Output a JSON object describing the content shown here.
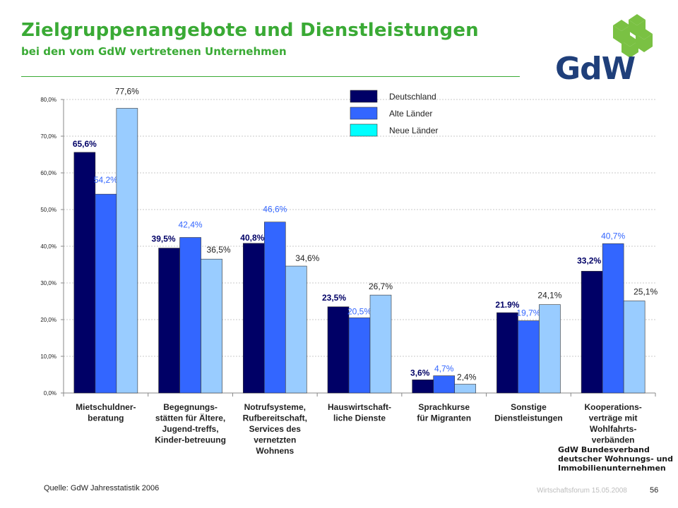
{
  "header": {
    "title": "Zielgruppenangebote und Dienstleistungen",
    "subtitle": "bei den vom GdW vertretenen Unternehmen"
  },
  "logo": {
    "text": "GdW",
    "icon": "gdw-house-icon",
    "colors": {
      "green": "#7ac143",
      "blue": "#1f3f7a"
    }
  },
  "chart_data": {
    "type": "bar",
    "ylim": [
      0,
      80
    ],
    "y_ticks": [
      "0,0%",
      "10,0%",
      "20,0%",
      "30,0%",
      "40,0%",
      "50,0%",
      "60,0%",
      "70,0%",
      "80,0%"
    ],
    "grid": true,
    "legend_position": "top",
    "categories": [
      [
        "Mietschuldner-",
        "beratung"
      ],
      [
        "Begegnungs-",
        "stätten für Ältere,",
        "Jugend-treffs,",
        "Kinder-betreuung"
      ],
      [
        "Notrufsysteme,",
        "Rufbereitschaft,",
        "Services des",
        "vernetzten",
        "Wohnens"
      ],
      [
        "Hauswirtschaft-",
        "liche Dienste"
      ],
      [
        "Sprachkurse",
        "für Migranten"
      ],
      [
        "Sonstige",
        "Dienstleistungen"
      ],
      [
        "Kooperations-",
        "verträge mit",
        "Wohlfahrts-",
        "verbänden"
      ]
    ],
    "series": [
      {
        "name": "Deutschland",
        "color": "#000066",
        "label_color": "#000066",
        "values": [
          65.6,
          39.5,
          40.8,
          23.5,
          3.6,
          21.9,
          33.2
        ],
        "labels": [
          "65,6%",
          "39,5%",
          "40,8%",
          "23,5%",
          "3,6%",
          "21.9%",
          "33,2%"
        ]
      },
      {
        "name": "Alte Länder",
        "color": "#3366ff",
        "label_color": "#3366ff",
        "values": [
          54.2,
          42.4,
          46.6,
          20.5,
          4.7,
          19.7,
          40.7
        ],
        "labels": [
          "54,2%",
          "42,4%",
          "46,6%",
          "20,5%",
          "4,7%",
          "19,7%",
          "40,7%"
        ]
      },
      {
        "name": "Neue Länder",
        "color": "#99ccff",
        "legend_color": "#00ffff",
        "label_color": "#222222",
        "values": [
          77.6,
          36.5,
          34.6,
          26.7,
          2.4,
          24.1,
          25.1
        ],
        "labels": [
          "77,6%",
          "36,5%",
          "34,6%",
          "26,7%",
          "2,4%",
          "24,1%",
          "25,1%"
        ]
      }
    ]
  },
  "footer": {
    "source": "Quelle:  GdW Jahresstatistik 2006",
    "event": "Wirtschaftsforum 15.05.2008",
    "page": "56",
    "verband": [
      "GdW Bundesverband",
      "deutscher Wohnungs- und",
      "Immobilienunternehmen"
    ]
  }
}
